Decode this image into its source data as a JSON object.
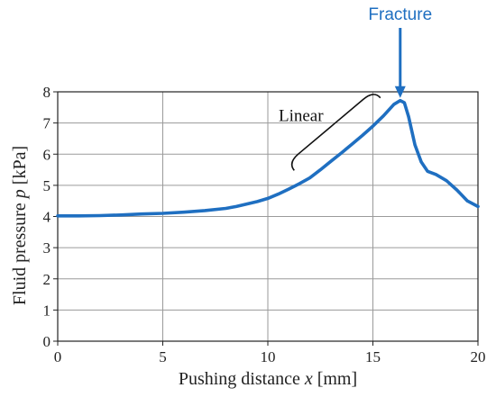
{
  "chart_data": {
    "type": "line",
    "title": "",
    "xlabel": "Pushing distance x [mm]",
    "xlabel_parts": {
      "before": "Pushing distance ",
      "var": "x",
      "after": " [mm]"
    },
    "ylabel": "Fluid pressure p [kPa]",
    "ylabel_parts": {
      "before": "Fluid pressure ",
      "var": "p",
      "after": " [kPa]"
    },
    "xlim": [
      0,
      20
    ],
    "ylim": [
      0,
      8
    ],
    "xticks": [
      0,
      5,
      10,
      15,
      20
    ],
    "yticks": [
      0,
      1,
      2,
      3,
      4,
      5,
      6,
      7,
      8
    ],
    "grid": true,
    "series": [
      {
        "color": "#1f6fc1",
        "x": [
          0,
          1,
          2,
          3,
          4,
          5,
          6,
          7,
          8,
          8.5,
          9,
          9.5,
          10,
          10.5,
          11,
          11.5,
          12,
          12.5,
          13,
          13.5,
          14,
          14.5,
          15,
          15.5,
          16,
          16.3,
          16.5,
          16.7,
          17,
          17.3,
          17.6,
          18,
          18.5,
          19,
          19.5,
          20
        ],
        "y": [
          4.02,
          4.02,
          4.03,
          4.05,
          4.08,
          4.1,
          4.14,
          4.19,
          4.26,
          4.32,
          4.4,
          4.48,
          4.58,
          4.72,
          4.88,
          5.05,
          5.24,
          5.5,
          5.77,
          6.04,
          6.32,
          6.6,
          6.9,
          7.23,
          7.6,
          7.72,
          7.65,
          7.2,
          6.3,
          5.75,
          5.45,
          5.35,
          5.15,
          4.85,
          4.5,
          4.32
        ]
      }
    ],
    "annotations": [
      {
        "text": "Fracture",
        "x": 16.3,
        "y": 7.72,
        "color": "#1f6fc1",
        "arrow": true
      },
      {
        "text": "Linear",
        "x_range": [
          11.7,
          15.8
        ],
        "brace": true,
        "color": "#111111"
      }
    ]
  }
}
